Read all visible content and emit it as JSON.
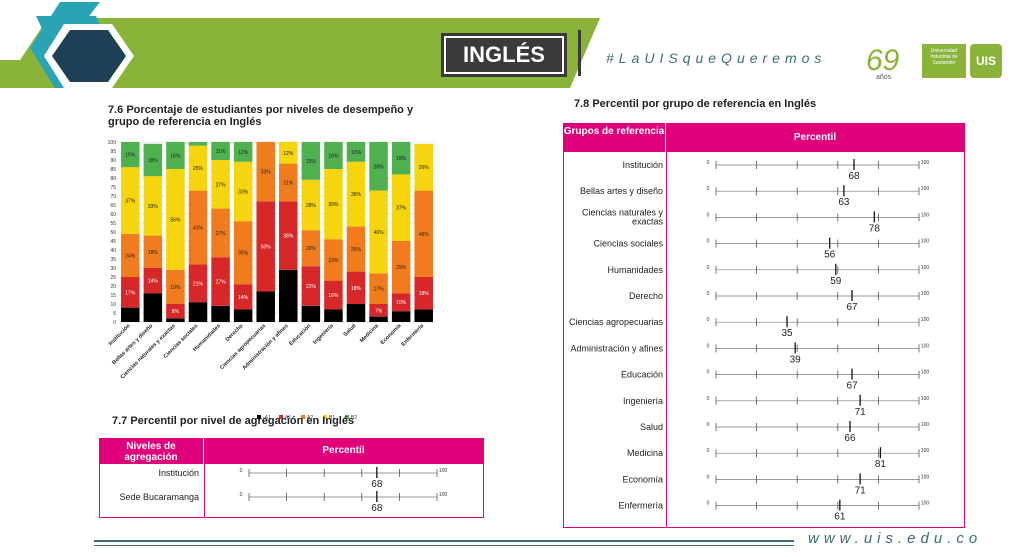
{
  "header": {
    "title": "INGLÉS",
    "hashtag": "#LaUISqueQueremos",
    "anniversary_number": "69",
    "anniversary_word": "años",
    "university_name": "Universidad Industrial de Santander",
    "seal_text": "UIS"
  },
  "colors": {
    "A-": "#7b1818",
    "A1": "#d62828",
    "A2": "#f07c1e",
    "B1": "#f6d40e",
    "B2": "#4eb04e",
    "magenta": "#e0007a",
    "banner_green": "#8ab33a",
    "banner_teal": "#2aa3b5",
    "banner_navy": "#1f3f55"
  },
  "footer": {
    "url": "www.uis.edu.co"
  },
  "sections": {
    "s76_title": "7.6 Porcentaje de estudiantes por niveles de desempeño y grupo de referencia en Inglés",
    "s77_title": "7.7 Percentil por nivel de agregación en Inglés",
    "s78_title": "7.8 Percentil por grupo de referencia en Inglés",
    "s77_head_col1": "Niveles de agregación",
    "s77_head_col2": "Percentil",
    "s78_head_col1": "Grupos de referencia",
    "s78_head_col2": "Percentil"
  },
  "chart_data": [
    {
      "type": "bar",
      "stacked": true,
      "title": "7.6 Porcentaje de estudiantes por niveles de desempeño y grupo de referencia en Inglés",
      "ylim": [
        0,
        100
      ],
      "yticks": [
        0,
        5,
        10,
        15,
        20,
        25,
        30,
        35,
        40,
        45,
        50,
        55,
        60,
        65,
        70,
        75,
        80,
        85,
        90,
        95,
        100
      ],
      "grid": true,
      "legend_position": "bottom",
      "categories": [
        "Institución",
        "Bellas artes y diseño",
        "Ciencias naturales y exactas",
        "Ciencias sociales",
        "Humanidades",
        "Derecho",
        "Ciencias agropecuarias",
        "Administración y afines",
        "Educación",
        "Ingeniería",
        "Salud",
        "Medicina",
        "Economía",
        "Enfermería"
      ],
      "series": [
        {
          "name": "-A1",
          "values": [
            8,
            16,
            2,
            11,
            9,
            7,
            17,
            29,
            9,
            7,
            10,
            3,
            6,
            7
          ],
          "labels": [
            "",
            "",
            "",
            "",
            "",
            "",
            "",
            "",
            "",
            "",
            "",
            "",
            "",
            ""
          ]
        },
        {
          "name": "A1",
          "values": [
            17,
            14,
            8,
            21,
            27,
            14,
            50,
            38,
            22,
            16,
            18,
            7,
            10,
            18
          ],
          "labels": [
            "17%",
            "14%",
            "8%",
            "21%",
            "27%",
            "14%",
            "50%",
            "38%",
            "22%",
            "16%",
            "18%",
            "7%",
            "10%",
            "18%"
          ]
        },
        {
          "name": "A2",
          "values": [
            24,
            18,
            19,
            41,
            27,
            35,
            33,
            21,
            20,
            23,
            25,
            17,
            29,
            48
          ],
          "labels": [
            "24%",
            "18%",
            "19%",
            "41%",
            "27%",
            "35%",
            "33%",
            "21%",
            "20%",
            "23%",
            "25%",
            "17%",
            "29%",
            "48%"
          ]
        },
        {
          "name": "B1",
          "values": [
            37,
            33,
            56,
            25,
            27,
            33,
            0,
            12,
            28,
            39,
            36,
            46,
            37,
            26
          ],
          "labels": [
            "37%",
            "33%",
            "56%",
            "25%",
            "27%",
            "33%",
            "",
            "12%",
            "28%",
            "39%",
            "36%",
            "46%",
            "37%",
            "26%"
          ]
        },
        {
          "name": "B2",
          "values": [
            15,
            18,
            16,
            2,
            11,
            12,
            0,
            0,
            23,
            16,
            12,
            28,
            18,
            0
          ],
          "labels": [
            "15%",
            "18%",
            "16%",
            "",
            "11%",
            "12%",
            "",
            "",
            "23%",
            "16%",
            "12%",
            "28%",
            "18%",
            ""
          ]
        }
      ]
    },
    {
      "type": "table",
      "title": "7.7 Percentil por nivel de agregación en Inglés",
      "scale_min_label": "0",
      "scale_max_label": "100",
      "rows": [
        {
          "label": "Institución",
          "value": 68,
          "value_label": "68"
        },
        {
          "label": "Sede Bucaramanga",
          "value": 68,
          "value_label": "68"
        }
      ]
    },
    {
      "type": "table",
      "title": "7.8 Percentil por grupo de referencia en Inglés",
      "scale_min_label": "0",
      "scale_max_label": "100",
      "rows": [
        {
          "label": "Institución",
          "value": 68,
          "value_label": "68"
        },
        {
          "label": "Bellas artes y diseño",
          "value": 63,
          "value_label": "63"
        },
        {
          "label": "Ciencias naturales y exactas",
          "value": 78,
          "value_label": "78"
        },
        {
          "label": "Ciencias sociales",
          "value": 56,
          "value_label": "56"
        },
        {
          "label": "Humanidades",
          "value": 59,
          "value_label": "59"
        },
        {
          "label": "Derecho",
          "value": 67,
          "value_label": "67"
        },
        {
          "label": "Ciencias agropecuarias",
          "value": 35,
          "value_label": "35"
        },
        {
          "label": "Administración y afines",
          "value": 39,
          "value_label": "39"
        },
        {
          "label": "Educación",
          "value": 67,
          "value_label": "67"
        },
        {
          "label": "Ingeniería",
          "value": 71,
          "value_label": "71"
        },
        {
          "label": "Salud",
          "value": 66,
          "value_label": "66"
        },
        {
          "label": "Medicina",
          "value": 81,
          "value_label": "81"
        },
        {
          "label": "Economía",
          "value": 71,
          "value_label": "71"
        },
        {
          "label": "Enfermería",
          "value": 61,
          "value_label": "61"
        }
      ]
    }
  ]
}
